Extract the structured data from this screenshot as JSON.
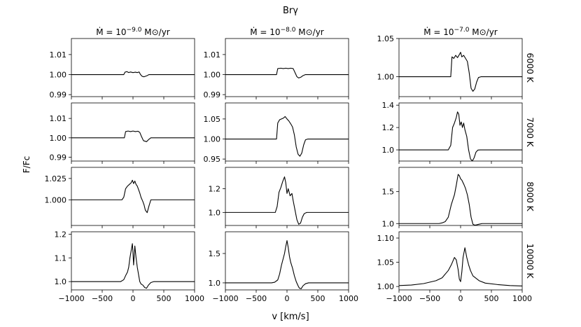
{
  "figure": {
    "title": "Brγ",
    "ylabel": "F/Fc",
    "xlabel": "v [km/s]",
    "x_ticks": [
      -1000,
      -500,
      0,
      500,
      1000
    ],
    "x_tick_labels": [
      "−1000",
      "−500",
      "0",
      "500",
      "1000"
    ],
    "columns": [
      {
        "prefix": "Ṁ = 10",
        "exponent": "−9.0",
        "suffix": " M⊙/yr"
      },
      {
        "prefix": "Ṁ = 10",
        "exponent": "−8.0",
        "suffix": " M⊙/yr"
      },
      {
        "prefix": "Ṁ = 10",
        "exponent": "−7.0",
        "suffix": " M⊙/yr"
      }
    ],
    "rows": [
      "6000 K",
      "7000 K",
      "8000 K",
      "10000 K"
    ]
  },
  "chart_data": [
    {
      "type": "line",
      "row": "6000 K",
      "column": "−9.0",
      "xlim": [
        -1000,
        1000
      ],
      "ylim": [
        0.989,
        1.018
      ],
      "yticks": [
        0.99,
        1.0,
        1.01
      ],
      "ytick_labels": [
        "0.99",
        "1.00",
        "1.01"
      ],
      "x": [
        -1000,
        -150,
        -130,
        -100,
        -70,
        -40,
        0,
        40,
        70,
        100,
        120,
        150,
        180,
        230,
        260,
        300,
        1000
      ],
      "y": [
        1.0,
        1.0,
        1.0012,
        1.0015,
        1.001,
        1.0013,
        1.001,
        1.0012,
        1.001,
        1.0013,
        1.0001,
        0.9991,
        0.9989,
        0.9995,
        1.0,
        1.0,
        1.0
      ]
    },
    {
      "type": "line",
      "row": "6000 K",
      "column": "−8.0",
      "xlim": [
        -1000,
        1000
      ],
      "ylim": [
        0.989,
        1.018
      ],
      "yticks": [
        0.99,
        1.0,
        1.01
      ],
      "ytick_labels": [
        "0.99",
        "1.00",
        "1.01"
      ],
      "x": [
        -1000,
        -170,
        -150,
        -100,
        -60,
        -20,
        20,
        60,
        100,
        130,
        160,
        190,
        230,
        260,
        300,
        1000
      ],
      "y": [
        1.0,
        1.0,
        1.003,
        1.0032,
        1.003,
        1.0032,
        1.003,
        1.0032,
        1.003,
        1.001,
        0.999,
        0.9983,
        0.9988,
        0.9995,
        1.0,
        1.0
      ]
    },
    {
      "type": "line",
      "row": "6000 K",
      "column": "−7.0",
      "xlim": [
        -1000,
        1000
      ],
      "ylim": [
        0.974,
        1.05
      ],
      "yticks": [
        1.0,
        1.05
      ],
      "ytick_labels": [
        "1.00",
        "1.05"
      ],
      "x": [
        -1000,
        -160,
        -140,
        -110,
        -80,
        -50,
        -20,
        0,
        20,
        50,
        80,
        110,
        140,
        170,
        200,
        230,
        260,
        290,
        330,
        1000
      ],
      "y": [
        1.0,
        1.0,
        1.026,
        1.024,
        1.028,
        1.025,
        1.029,
        1.032,
        1.026,
        1.028,
        1.024,
        1.02,
        1.005,
        0.985,
        0.981,
        0.984,
        0.993,
        0.999,
        1.0,
        1.0
      ]
    },
    {
      "type": "line",
      "row": "7000 K",
      "column": "−9.0",
      "xlim": [
        -1000,
        1000
      ],
      "ylim": [
        0.988,
        1.018
      ],
      "yticks": [
        0.99,
        1.0,
        1.01
      ],
      "ytick_labels": [
        "0.99",
        "1.00",
        "1.01"
      ],
      "x": [
        -1000,
        -140,
        -120,
        -80,
        -40,
        0,
        40,
        80,
        110,
        140,
        170,
        220,
        250,
        290,
        1000
      ],
      "y": [
        1.0,
        1.0,
        1.0032,
        1.0035,
        1.0032,
        1.0035,
        1.0032,
        1.0034,
        1.0028,
        1.0005,
        0.9985,
        0.998,
        0.999,
        1.0,
        1.0
      ]
    },
    {
      "type": "line",
      "row": "7000 K",
      "column": "−8.0",
      "xlim": [
        -1000,
        1000
      ],
      "ylim": [
        0.945,
        1.09
      ],
      "yticks": [
        0.95,
        1.0,
        1.05
      ],
      "ytick_labels": [
        "0.95",
        "1.00",
        "1.05"
      ],
      "x": [
        -1000,
        -170,
        -150,
        -120,
        -90,
        -60,
        -30,
        0,
        30,
        60,
        90,
        120,
        150,
        180,
        210,
        240,
        270,
        300,
        340,
        1000
      ],
      "y": [
        1.0,
        1.0,
        1.04,
        1.048,
        1.05,
        1.052,
        1.056,
        1.05,
        1.045,
        1.038,
        1.03,
        1.01,
        0.98,
        0.962,
        0.957,
        0.965,
        0.985,
        0.998,
        1.0,
        1.0
      ]
    },
    {
      "type": "line",
      "row": "7000 K",
      "column": "−7.0",
      "xlim": [
        -1000,
        1000
      ],
      "ylim": [
        0.9,
        1.42
      ],
      "yticks": [
        1.0,
        1.2,
        1.4
      ],
      "ytick_labels": [
        "1.0",
        "1.2",
        "1.4"
      ],
      "x": [
        -1000,
        -200,
        -160,
        -130,
        -100,
        -70,
        -50,
        -30,
        -10,
        10,
        30,
        50,
        70,
        100,
        130,
        160,
        190,
        220,
        250,
        280,
        320,
        1000
      ],
      "y": [
        1.0,
        1.0,
        1.04,
        1.2,
        1.24,
        1.29,
        1.34,
        1.32,
        1.22,
        1.25,
        1.2,
        1.24,
        1.18,
        1.12,
        1.0,
        0.92,
        0.9,
        0.93,
        0.98,
        0.998,
        1.0,
        1.0
      ]
    },
    {
      "type": "line",
      "row": "8000 K",
      "column": "−9.0",
      "xlim": [
        -1000,
        1000
      ],
      "ylim": [
        0.97,
        1.038
      ],
      "yticks": [
        1.0,
        1.025
      ],
      "ytick_labels": [
        "1.000",
        "1.025"
      ],
      "x": [
        -1000,
        -180,
        -150,
        -120,
        -90,
        -60,
        -30,
        -10,
        10,
        30,
        50,
        70,
        90,
        110,
        130,
        160,
        180,
        200,
        230,
        260,
        290,
        1000
      ],
      "y": [
        1.0,
        1.0,
        1.003,
        1.013,
        1.016,
        1.018,
        1.02,
        1.023,
        1.019,
        1.022,
        1.018,
        1.016,
        1.012,
        1.008,
        1.003,
        0.998,
        0.994,
        0.988,
        0.985,
        0.993,
        1.0,
        1.0
      ]
    },
    {
      "type": "line",
      "row": "8000 K",
      "column": "−8.0",
      "xlim": [
        -1000,
        1000
      ],
      "ylim": [
        0.89,
        1.38
      ],
      "yticks": [
        1.0,
        1.2
      ],
      "ytick_labels": [
        "1.0",
        "1.2"
      ],
      "x": [
        -1000,
        -190,
        -160,
        -130,
        -100,
        -70,
        -40,
        -20,
        0,
        20,
        50,
        80,
        100,
        130,
        160,
        190,
        220,
        250,
        280,
        320,
        1000
      ],
      "y": [
        1.0,
        1.0,
        1.05,
        1.17,
        1.21,
        1.26,
        1.3,
        1.25,
        1.16,
        1.2,
        1.14,
        1.16,
        1.1,
        1.02,
        0.94,
        0.9,
        0.91,
        0.96,
        0.99,
        1.0,
        1.0
      ]
    },
    {
      "type": "line",
      "row": "8000 K",
      "column": "−7.0",
      "xlim": [
        -1000,
        1000
      ],
      "ylim": [
        0.97,
        1.88
      ],
      "yticks": [
        1.0,
        1.5
      ],
      "ytick_labels": [
        "1.0",
        "1.5"
      ],
      "x": [
        -1000,
        -350,
        -300,
        -250,
        -200,
        -150,
        -100,
        -70,
        -40,
        -20,
        0,
        20,
        50,
        80,
        110,
        140,
        170,
        200,
        230,
        260,
        300,
        350,
        1000
      ],
      "y": [
        1.0,
        1.0,
        1.01,
        1.03,
        1.1,
        1.3,
        1.45,
        1.6,
        1.77,
        1.75,
        1.7,
        1.68,
        1.62,
        1.55,
        1.45,
        1.3,
        1.1,
        0.99,
        0.975,
        0.98,
        0.99,
        1.0,
        1.0
      ]
    },
    {
      "type": "line",
      "row": "10000 K",
      "column": "−9.0",
      "xlim": [
        -1000,
        1000
      ],
      "ylim": [
        0.965,
        1.21
      ],
      "yticks": [
        1.0,
        1.1,
        1.2
      ],
      "ytick_labels": [
        "1.0",
        "1.1",
        "1.2"
      ],
      "x": [
        -1000,
        -200,
        -150,
        -120,
        -90,
        -70,
        -50,
        -30,
        -10,
        0,
        10,
        30,
        50,
        70,
        90,
        110,
        130,
        160,
        190,
        220,
        250,
        290,
        340,
        1000
      ],
      "y": [
        1.0,
        1.0,
        1.008,
        1.025,
        1.04,
        1.06,
        1.1,
        1.13,
        1.16,
        1.12,
        1.07,
        1.15,
        1.1,
        1.06,
        1.03,
        1.0,
        0.99,
        0.985,
        0.975,
        0.972,
        0.985,
        0.996,
        1.0,
        1.0
      ]
    },
    {
      "type": "line",
      "row": "10000 K",
      "column": "−8.0",
      "xlim": [
        -1000,
        1000
      ],
      "ylim": [
        0.88,
        1.87
      ],
      "yticks": [
        1.0,
        1.5
      ],
      "ytick_labels": [
        "1.0",
        "1.5"
      ],
      "x": [
        -1000,
        -250,
        -200,
        -150,
        -120,
        -90,
        -60,
        -40,
        -20,
        0,
        20,
        40,
        60,
        90,
        120,
        150,
        180,
        200,
        230,
        260,
        300,
        350,
        1000
      ],
      "y": [
        1.0,
        1.0,
        1.01,
        1.05,
        1.15,
        1.3,
        1.42,
        1.5,
        1.62,
        1.72,
        1.6,
        1.45,
        1.35,
        1.25,
        1.12,
        1.02,
        0.95,
        0.91,
        0.9,
        0.95,
        0.985,
        1.0,
        1.0
      ]
    },
    {
      "type": "line",
      "row": "10000 K",
      "column": "−7.0",
      "xlim": [
        -1000,
        1000
      ],
      "ylim": [
        0.993,
        1.113
      ],
      "yticks": [
        1.0,
        1.05,
        1.1
      ],
      "ytick_labels": [
        "1.00",
        "1.05",
        "1.10"
      ],
      "x": [
        -1000,
        -800,
        -600,
        -400,
        -300,
        -200,
        -150,
        -100,
        -70,
        -40,
        -20,
        0,
        20,
        40,
        70,
        100,
        130,
        160,
        200,
        300,
        400,
        600,
        800,
        1000
      ],
      "y": [
        1.002,
        1.003,
        1.006,
        1.012,
        1.018,
        1.033,
        1.045,
        1.06,
        1.055,
        1.035,
        1.015,
        1.01,
        1.03,
        1.06,
        1.08,
        1.06,
        1.045,
        1.033,
        1.022,
        1.012,
        1.007,
        1.004,
        1.002,
        1.001
      ]
    }
  ]
}
